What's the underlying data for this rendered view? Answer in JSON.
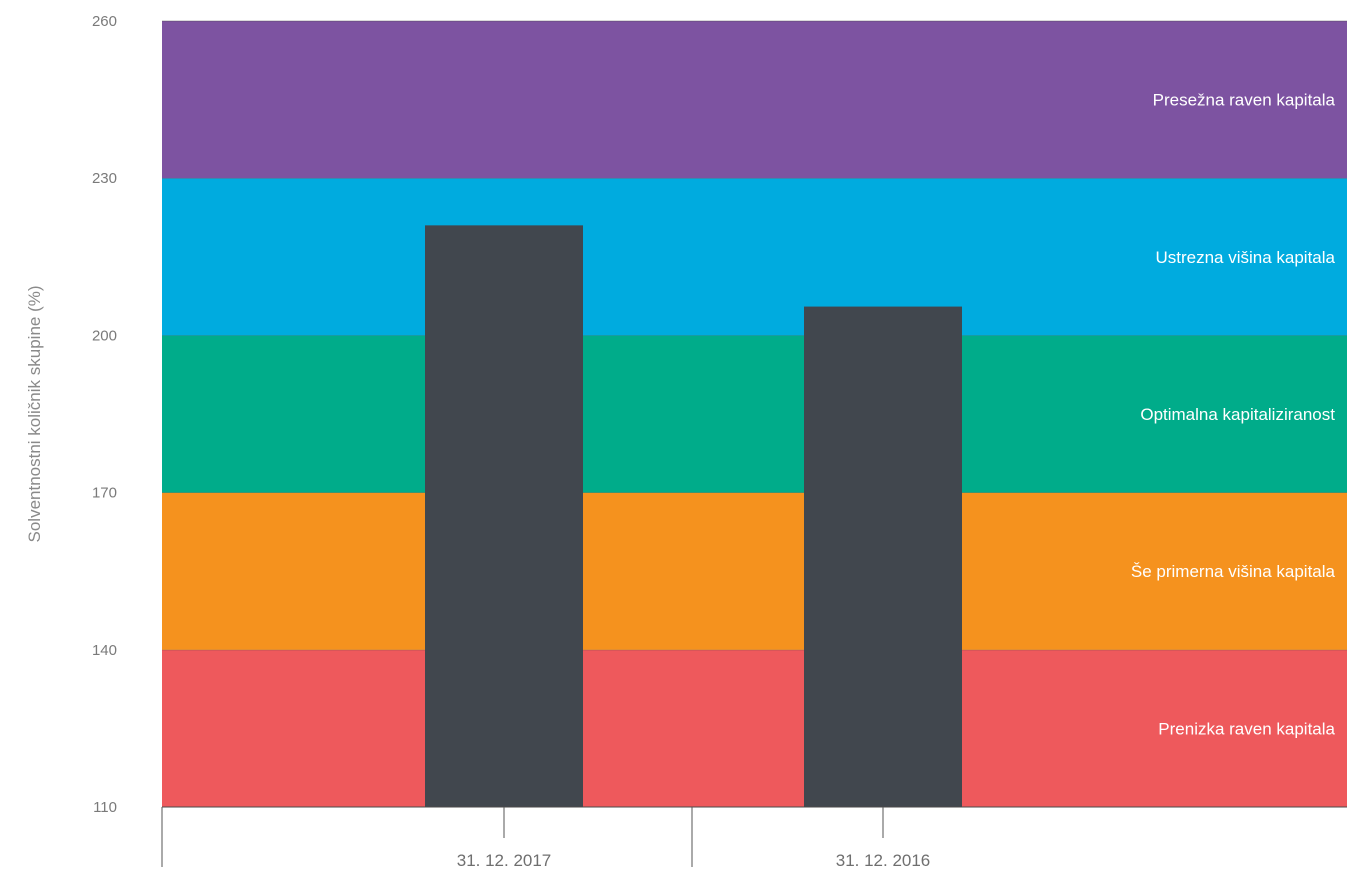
{
  "chart_data": {
    "type": "bar",
    "title": "",
    "xlabel": "",
    "ylabel": "Solventnostni količnik skupine (%)",
    "ylim": [
      110,
      260
    ],
    "yticks": [
      110,
      140,
      170,
      200,
      230,
      260
    ],
    "categories": [
      "31. 12. 2017",
      "31. 12. 2016"
    ],
    "values": [
      221,
      205.5
    ],
    "bar_color": "#41474e",
    "bands": [
      {
        "label": "Prenizka raven kapitala",
        "from": 110,
        "to": 140,
        "color": "#ee595c"
      },
      {
        "label": "Še primerna višina kapitala",
        "from": 140,
        "to": 170,
        "color": "#f5921e"
      },
      {
        "label": "Optimalna kapitaliziranost",
        "from": 170,
        "to": 200,
        "color": "#00ac8a"
      },
      {
        "label": "Ustrezna višina kapitala",
        "from": 200,
        "to": 230,
        "color": "#00abdf"
      },
      {
        "label": "Presežna raven kapitala",
        "from": 230,
        "to": 260,
        "color": "#7d53a1"
      }
    ],
    "grid": false,
    "legend": "none"
  }
}
